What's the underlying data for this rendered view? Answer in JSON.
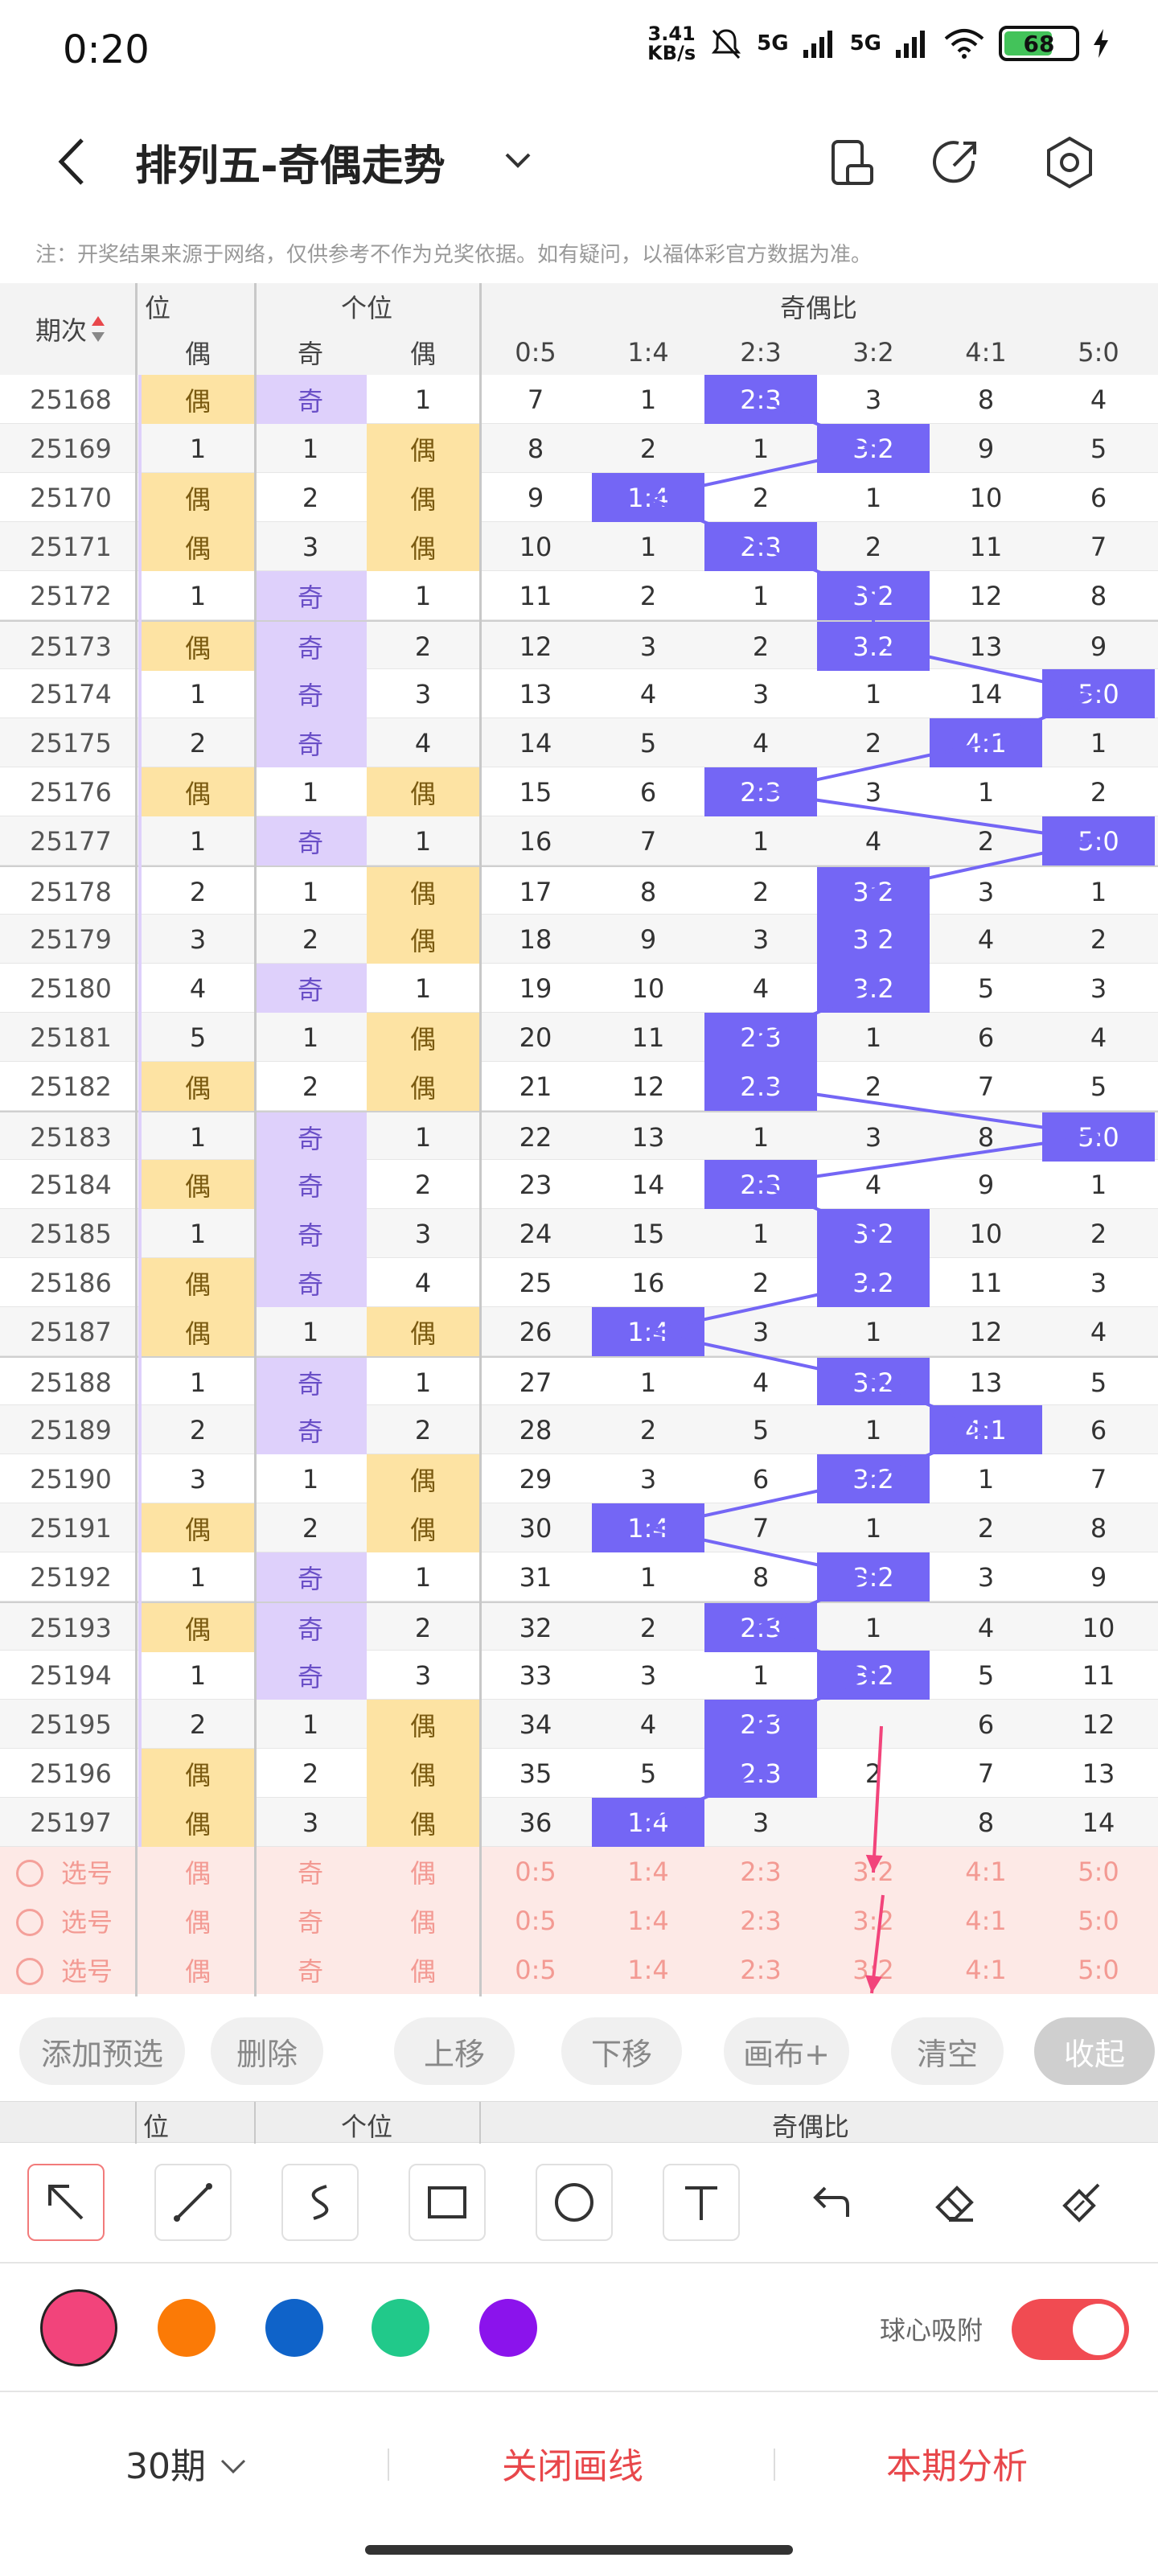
{
  "status": {
    "time": "0:20",
    "speed": "3.41\nKB/s",
    "net1": "5G",
    "net2": "5G",
    "battery": "68"
  },
  "header": {
    "title": "排列五-奇偶走势"
  },
  "note": "注：开奖结果来源于网络，仅供参考不作为兑奖依据。如有疑问，以福体彩官方数据为准。",
  "table": {
    "groups": {
      "left": "位",
      "mid": "个位",
      "ratio": "奇偶比"
    },
    "period_header": "期次",
    "sub_headers": [
      "偶",
      "奇",
      "偶",
      "0:5",
      "1:4",
      "2:3",
      "3:2",
      "4:1",
      "5:0"
    ],
    "rows": [
      {
        "p": "25168",
        "c": [
          "偶",
          "奇",
          "1",
          "7",
          "1",
          "2:3",
          "3",
          "8",
          "4"
        ]
      },
      {
        "p": "25169",
        "c": [
          "1",
          "1",
          "偶",
          "8",
          "2",
          "1",
          "3:2",
          "9",
          "5"
        ]
      },
      {
        "p": "25170",
        "c": [
          "偶",
          "2",
          "偶",
          "9",
          "1:4",
          "2",
          "1",
          "10",
          "6"
        ]
      },
      {
        "p": "25171",
        "c": [
          "偶",
          "3",
          "偶",
          "10",
          "1",
          "2:3",
          "2",
          "11",
          "7"
        ]
      },
      {
        "p": "25172",
        "c": [
          "1",
          "奇",
          "1",
          "11",
          "2",
          "1",
          "3:2",
          "12",
          "8"
        ]
      },
      {
        "p": "25173",
        "c": [
          "偶",
          "奇",
          "2",
          "12",
          "3",
          "2",
          "3:2",
          "13",
          "9"
        ]
      },
      {
        "p": "25174",
        "c": [
          "1",
          "奇",
          "3",
          "13",
          "4",
          "3",
          "1",
          "14",
          "5:0"
        ]
      },
      {
        "p": "25175",
        "c": [
          "2",
          "奇",
          "4",
          "14",
          "5",
          "4",
          "2",
          "4:1",
          "1"
        ]
      },
      {
        "p": "25176",
        "c": [
          "偶",
          "1",
          "偶",
          "15",
          "6",
          "2:3",
          "3",
          "1",
          "2"
        ]
      },
      {
        "p": "25177",
        "c": [
          "1",
          "奇",
          "1",
          "16",
          "7",
          "1",
          "4",
          "2",
          "5:0"
        ]
      },
      {
        "p": "25178",
        "c": [
          "2",
          "1",
          "偶",
          "17",
          "8",
          "2",
          "3:2",
          "3",
          "1"
        ]
      },
      {
        "p": "25179",
        "c": [
          "3",
          "2",
          "偶",
          "18",
          "9",
          "3",
          "3:2",
          "4",
          "2"
        ]
      },
      {
        "p": "25180",
        "c": [
          "4",
          "奇",
          "1",
          "19",
          "10",
          "4",
          "3:2",
          "5",
          "3"
        ]
      },
      {
        "p": "25181",
        "c": [
          "5",
          "1",
          "偶",
          "20",
          "11",
          "2:3",
          "1",
          "6",
          "4"
        ]
      },
      {
        "p": "25182",
        "c": [
          "偶",
          "2",
          "偶",
          "21",
          "12",
          "2:3",
          "2",
          "7",
          "5"
        ]
      },
      {
        "p": "25183",
        "c": [
          "1",
          "奇",
          "1",
          "22",
          "13",
          "1",
          "3",
          "8",
          "5:0"
        ]
      },
      {
        "p": "25184",
        "c": [
          "偶",
          "奇",
          "2",
          "23",
          "14",
          "2:3",
          "4",
          "9",
          "1"
        ]
      },
      {
        "p": "25185",
        "c": [
          "1",
          "奇",
          "3",
          "24",
          "15",
          "1",
          "3:2",
          "10",
          "2"
        ]
      },
      {
        "p": "25186",
        "c": [
          "偶",
          "奇",
          "4",
          "25",
          "16",
          "2",
          "3:2",
          "11",
          "3"
        ]
      },
      {
        "p": "25187",
        "c": [
          "偶",
          "1",
          "偶",
          "26",
          "1:4",
          "3",
          "1",
          "12",
          "4"
        ]
      },
      {
        "p": "25188",
        "c": [
          "1",
          "奇",
          "1",
          "27",
          "1",
          "4",
          "3:2",
          "13",
          "5"
        ]
      },
      {
        "p": "25189",
        "c": [
          "2",
          "奇",
          "2",
          "28",
          "2",
          "5",
          "1",
          "4:1",
          "6"
        ]
      },
      {
        "p": "25190",
        "c": [
          "3",
          "1",
          "偶",
          "29",
          "3",
          "6",
          "3:2",
          "1",
          "7"
        ]
      },
      {
        "p": "25191",
        "c": [
          "偶",
          "2",
          "偶",
          "30",
          "1:4",
          "7",
          "1",
          "2",
          "8"
        ]
      },
      {
        "p": "25192",
        "c": [
          "1",
          "奇",
          "1",
          "31",
          "1",
          "8",
          "3:2",
          "3",
          "9"
        ]
      },
      {
        "p": "25193",
        "c": [
          "偶",
          "奇",
          "2",
          "32",
          "2",
          "2:3",
          "1",
          "4",
          "10"
        ]
      },
      {
        "p": "25194",
        "c": [
          "1",
          "奇",
          "3",
          "33",
          "3",
          "1",
          "3:2",
          "5",
          "11"
        ]
      },
      {
        "p": "25195",
        "c": [
          "2",
          "1",
          "偶",
          "34",
          "4",
          "2:3",
          "",
          "6",
          "12"
        ]
      },
      {
        "p": "25196",
        "c": [
          "偶",
          "2",
          "偶",
          "35",
          "5",
          "2:3",
          "2",
          "7",
          "13"
        ]
      },
      {
        "p": "25197",
        "c": [
          "偶",
          "3",
          "偶",
          "36",
          "1:4",
          "3",
          "",
          "8",
          "14"
        ]
      }
    ],
    "pick_rows": [
      {
        "label": "选号",
        "c": [
          "偶",
          "奇",
          "偶",
          "0:5",
          "1:4",
          "2:3",
          "3:2",
          "4:1",
          "5:0"
        ]
      },
      {
        "label": "选号",
        "c": [
          "偶",
          "奇",
          "偶",
          "0:5",
          "1:4",
          "2:3",
          "3:2",
          "4:1",
          "5:0"
        ]
      },
      {
        "label": "选号",
        "c": [
          "偶",
          "奇",
          "偶",
          "0:5",
          "1:4",
          "2:3",
          "3:2",
          "4:1",
          "5:0"
        ]
      }
    ]
  },
  "actions": [
    "添加预选",
    "删除",
    "上移",
    "下移",
    "画布+",
    "清空",
    "收起"
  ],
  "tools": [
    "arrow-tool-icon",
    "line-tool-icon",
    "curve-tool-icon",
    "rectangle-tool-icon",
    "circle-tool-icon",
    "text-tool-icon",
    "undo-icon",
    "eraser-icon",
    "clear-canvas-icon"
  ],
  "colors": [
    "#f2447b",
    "#fb7a06",
    "#0f63c9",
    "#21c98a",
    "#8b13ec"
  ],
  "snap_label": "球心吸附",
  "bottom": {
    "periods": "30期",
    "close_lines": "关闭画线",
    "analysis": "本期分析"
  }
}
